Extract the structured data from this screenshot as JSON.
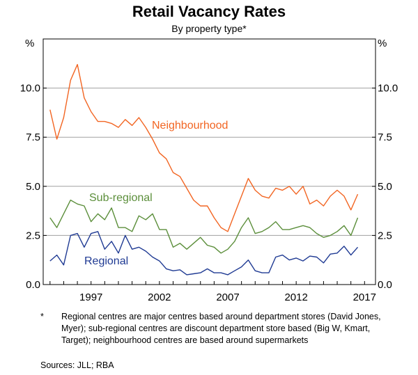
{
  "chart_data": {
    "type": "line",
    "title": "Retail Vacancy Rates",
    "subtitle": "By property type*",
    "y_unit_label": "%",
    "ylim": [
      0,
      12.5
    ],
    "yticks": [
      0.0,
      2.5,
      5.0,
      7.5,
      10.0
    ],
    "ytick_labels": [
      "0.0",
      "2.5",
      "5.0",
      "7.5",
      "10.0"
    ],
    "xlim": [
      1993.5,
      2017.8
    ],
    "xticks": [
      1997,
      2002,
      2007,
      2012,
      2017
    ],
    "xtick_labels": [
      "1997",
      "2002",
      "2007",
      "2012",
      "2017"
    ],
    "grid": true,
    "series": [
      {
        "name": "Neighbourhood",
        "color": "#f26522",
        "x": [
          1994.0,
          1994.5,
          1995.0,
          1995.5,
          1996.0,
          1996.5,
          1997.0,
          1997.5,
          1998.0,
          1998.5,
          1999.0,
          1999.5,
          2000.0,
          2000.5,
          2001.0,
          2001.5,
          2002.0,
          2002.5,
          2003.0,
          2003.5,
          2004.0,
          2004.5,
          2005.0,
          2005.5,
          2006.0,
          2006.5,
          2007.0,
          2007.5,
          2008.0,
          2008.5,
          2009.0,
          2009.5,
          2010.0,
          2010.5,
          2011.0,
          2011.5,
          2012.0,
          2012.5,
          2013.0,
          2013.5,
          2014.0,
          2014.5,
          2015.0,
          2015.5,
          2016.0,
          2016.5,
          2017.0
        ],
        "values": [
          8.9,
          7.4,
          8.5,
          10.4,
          11.2,
          9.5,
          8.8,
          8.3,
          8.3,
          8.2,
          8.0,
          8.4,
          8.1,
          8.5,
          8.0,
          7.4,
          6.7,
          6.4,
          5.7,
          5.5,
          4.9,
          4.3,
          4.0,
          4.0,
          3.4,
          2.9,
          2.7,
          3.6,
          4.5,
          5.4,
          4.8,
          4.5,
          4.4,
          4.9,
          4.8,
          5.0,
          4.6,
          5.0,
          4.1,
          4.3,
          4.0,
          4.5,
          4.8,
          4.5,
          3.8,
          4.6,
          null
        ]
      },
      {
        "name": "Sub-regional",
        "color": "#5b8e3a",
        "x": [
          1994.0,
          1994.5,
          1995.0,
          1995.5,
          1996.0,
          1996.5,
          1997.0,
          1997.5,
          1998.0,
          1998.5,
          1999.0,
          1999.5,
          2000.0,
          2000.5,
          2001.0,
          2001.5,
          2002.0,
          2002.5,
          2003.0,
          2003.5,
          2004.0,
          2004.5,
          2005.0,
          2005.5,
          2006.0,
          2006.5,
          2007.0,
          2007.5,
          2008.0,
          2008.5,
          2009.0,
          2009.5,
          2010.0,
          2010.5,
          2011.0,
          2011.5,
          2012.0,
          2012.5,
          2013.0,
          2013.5,
          2014.0,
          2014.5,
          2015.0,
          2015.5,
          2016.0,
          2016.5,
          2017.0
        ],
        "values": [
          3.4,
          2.9,
          3.6,
          4.3,
          4.1,
          4.0,
          3.2,
          3.6,
          3.3,
          3.9,
          2.9,
          2.9,
          2.7,
          3.5,
          3.3,
          3.6,
          2.8,
          2.8,
          1.9,
          2.1,
          1.8,
          2.1,
          2.4,
          2.0,
          1.9,
          1.6,
          1.8,
          2.2,
          2.9,
          3.4,
          2.6,
          2.7,
          2.9,
          3.2,
          2.8,
          2.8,
          2.9,
          3.0,
          2.9,
          2.6,
          2.4,
          2.5,
          2.7,
          3.0,
          2.5,
          3.4,
          null
        ]
      },
      {
        "name": "Regional",
        "color": "#1f3a93",
        "x": [
          1994.0,
          1994.5,
          1995.0,
          1995.5,
          1996.0,
          1996.5,
          1997.0,
          1997.5,
          1998.0,
          1998.5,
          1999.0,
          1999.5,
          2000.0,
          2000.5,
          2001.0,
          2001.5,
          2002.0,
          2002.5,
          2003.0,
          2003.5,
          2004.0,
          2004.5,
          2005.0,
          2005.5,
          2006.0,
          2006.5,
          2007.0,
          2007.5,
          2008.0,
          2008.5,
          2009.0,
          2009.5,
          2010.0,
          2010.5,
          2011.0,
          2011.5,
          2012.0,
          2012.5,
          2013.0,
          2013.5,
          2014.0,
          2014.5,
          2015.0,
          2015.5,
          2016.0,
          2016.5,
          2017.0
        ],
        "values": [
          1.2,
          1.5,
          1.0,
          2.5,
          2.6,
          1.9,
          2.6,
          2.7,
          1.8,
          2.2,
          1.6,
          2.5,
          1.8,
          1.9,
          1.7,
          1.4,
          1.2,
          0.8,
          0.7,
          0.75,
          0.5,
          0.55,
          0.6,
          0.8,
          0.6,
          0.6,
          0.5,
          0.7,
          0.9,
          1.25,
          0.7,
          0.6,
          0.6,
          1.4,
          1.5,
          1.25,
          1.35,
          1.2,
          1.45,
          1.4,
          1.1,
          1.55,
          1.6,
          1.95,
          1.5,
          1.9,
          null
        ]
      }
    ],
    "series_labels": [
      "Neighbourhood",
      "Sub-regional",
      "Regional"
    ]
  },
  "footnote": {
    "marker": "*",
    "text": "Regional centres are major centres based around department stores (David Jones, Myer); sub-regional centres are discount department store based (Big W, Kmart, Target); neighbourhood centres are based around supermarkets"
  },
  "sources": "Sources:  JLL; RBA"
}
